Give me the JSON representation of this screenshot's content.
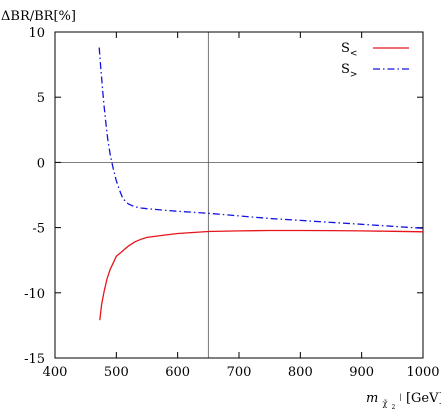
{
  "chart_data": {
    "type": "line",
    "ylabel": "ΔBR/BR[%]",
    "xlabel_main": "m",
    "xlabel_sub": "χ̃",
    "xlabel_sub2": "2",
    "xlabel_sup": "|",
    "xlabel_unit": "[GeV]",
    "xlim": [
      400,
      1000
    ],
    "ylim": [
      -15,
      10
    ],
    "xticks": [
      400,
      500,
      600,
      700,
      800,
      900,
      1000
    ],
    "yticks": [
      10,
      5,
      0,
      -5,
      -10,
      -15
    ],
    "reference_lines": {
      "y": 0,
      "x": 650
    },
    "grid": false,
    "legend_position": "top-right",
    "series": [
      {
        "name_main": "S",
        "name_sub": "<",
        "color": "#e8141b",
        "dash": "solid",
        "x": [
          473,
          476,
          480,
          485,
          490,
          495,
          500,
          505,
          510,
          515,
          520,
          530,
          540,
          550,
          575,
          600,
          650,
          700,
          750,
          800,
          850,
          900,
          950,
          1000
        ],
        "y": [
          -12.1,
          -10.9,
          -9.9,
          -8.9,
          -8.2,
          -7.7,
          -7.2,
          -7.0,
          -6.8,
          -6.6,
          -6.4,
          -6.1,
          -5.9,
          -5.75,
          -5.6,
          -5.45,
          -5.3,
          -5.25,
          -5.22,
          -5.22,
          -5.23,
          -5.25,
          -5.28,
          -5.32
        ]
      },
      {
        "name_main": "S",
        "name_sub": ">",
        "color": "#1414e0",
        "dash": "dashdot",
        "x": [
          472,
          474,
          476,
          478,
          480,
          483,
          486,
          490,
          495,
          500,
          505,
          510,
          515,
          520,
          530,
          540,
          550,
          575,
          600,
          650,
          700,
          750,
          800,
          850,
          900,
          950,
          1000
        ],
        "y": [
          8.8,
          7.6,
          6.5,
          5.4,
          4.3,
          3.0,
          1.8,
          0.6,
          -0.5,
          -1.4,
          -2.1,
          -2.7,
          -3.0,
          -3.2,
          -3.4,
          -3.5,
          -3.55,
          -3.65,
          -3.75,
          -3.9,
          -4.1,
          -4.3,
          -4.45,
          -4.6,
          -4.75,
          -4.9,
          -5.05
        ]
      }
    ]
  }
}
